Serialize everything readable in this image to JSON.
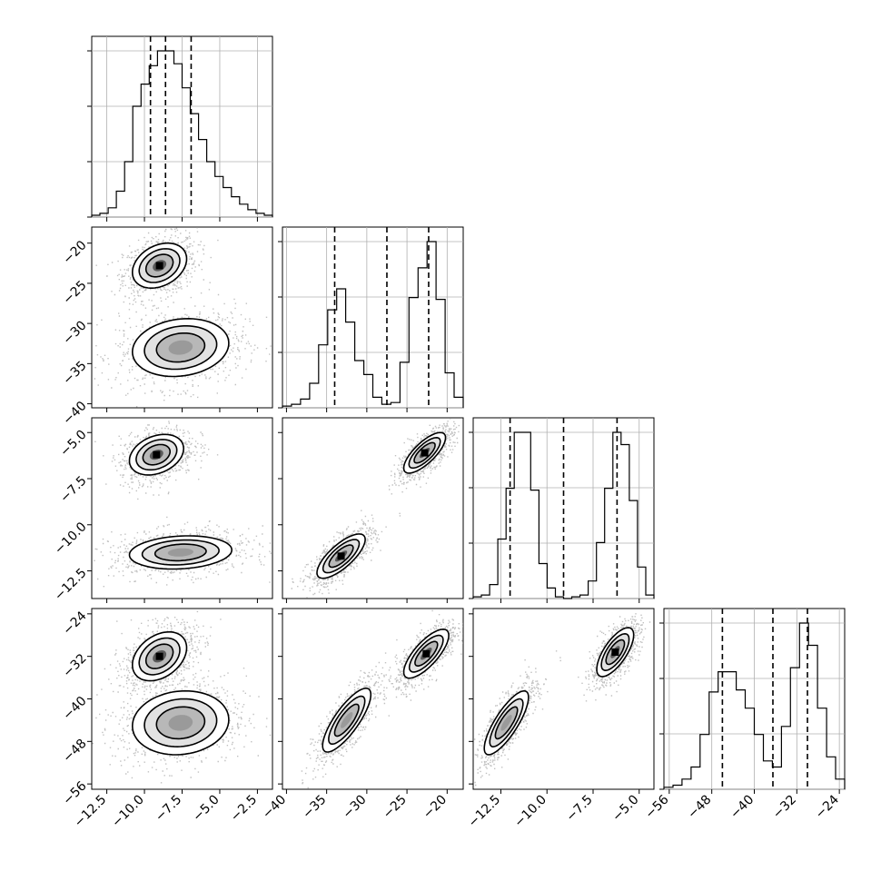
{
  "chart_data": {
    "type": "corner",
    "params": [
      {
        "range": [
          -13.5,
          -1.5
        ],
        "ticks": [
          -12.5,
          -10.0,
          -7.5,
          -5.0,
          -2.5
        ],
        "tick_labels": [
          "−12.5",
          "−10.0",
          "−7.5",
          "−5.0",
          "−2.5"
        ],
        "quantiles": [
          -9.6,
          -8.6,
          -6.9
        ]
      },
      {
        "range": [
          -40.5,
          -18.0
        ],
        "ticks": [
          -40,
          -35,
          -30,
          -25,
          -20
        ],
        "tick_labels": [
          "−40",
          "−35",
          "−30",
          "−25",
          "−20"
        ],
        "quantiles": [
          -34.0,
          -27.5,
          -22.3
        ]
      },
      {
        "range": [
          -14.0,
          -4.2
        ],
        "ticks": [
          -12.5,
          -10.0,
          -7.5,
          -5.0
        ],
        "tick_labels": [
          "−12.5",
          "−10.0",
          "−7.5",
          "−5.0"
        ],
        "quantiles": [
          -12.0,
          -9.1,
          -6.2
        ]
      },
      {
        "range": [
          -57.0,
          -23.0
        ],
        "ticks": [
          -56,
          -48,
          -40,
          -32,
          -24
        ],
        "tick_labels": [
          "−56",
          "−48",
          "−40",
          "−32",
          "−24"
        ],
        "quantiles": [
          -46.0,
          -36.5,
          -30.0
        ]
      }
    ],
    "histograms": [
      [
        1,
        2,
        5,
        14,
        30,
        60,
        72,
        82,
        90,
        90,
        83,
        70,
        56,
        42,
        30,
        22,
        16,
        11,
        7,
        4,
        2,
        1
      ],
      [
        1,
        2,
        5,
        14,
        36,
        56,
        68,
        49,
        27,
        19,
        6,
        2,
        3,
        26,
        63,
        80,
        95,
        62,
        20,
        6
      ],
      [
        1,
        2,
        8,
        34,
        63,
        95,
        95,
        62,
        20,
        6,
        1,
        0,
        1,
        2,
        10,
        32,
        63,
        95,
        88,
        56,
        18,
        2
      ],
      [
        1,
        2,
        5,
        11,
        27,
        48,
        58,
        58,
        49,
        40,
        27,
        14,
        11,
        31,
        60,
        82,
        71,
        40,
        16,
        5
      ]
    ],
    "pairs": [
      {
        "row": 1,
        "col": 0,
        "modes": [
          {
            "mu": [
              -9.0,
              -22.8
            ],
            "sd": [
              0.9,
              1.4
            ],
            "rho": 0.3,
            "peak": true
          },
          {
            "mu": [
              -7.6,
              -33.0
            ],
            "sd": [
              1.6,
              1.8
            ],
            "rho": 0.15,
            "peak": false
          }
        ]
      },
      {
        "row": 2,
        "col": 0,
        "modes": [
          {
            "mu": [
              -9.2,
              -6.2
            ],
            "sd": [
              0.9,
              0.55
            ],
            "rho": 0.3,
            "peak": true
          },
          {
            "mu": [
              -7.6,
              -11.5
            ],
            "sd": [
              1.7,
              0.45
            ],
            "rho": 0.15,
            "peak": false
          }
        ]
      },
      {
        "row": 2,
        "col": 1,
        "modes": [
          {
            "mu": [
              -22.8,
              -6.1
            ],
            "sd": [
              1.3,
              0.55
            ],
            "rho": 0.75,
            "peak": true
          },
          {
            "mu": [
              -33.2,
              -11.7
            ],
            "sd": [
              1.5,
              0.6
            ],
            "rho": 0.75,
            "peak": true
          }
        ]
      },
      {
        "row": 3,
        "col": 0,
        "modes": [
          {
            "mu": [
              -9.0,
              -32.0
            ],
            "sd": [
              0.9,
              2.3
            ],
            "rho": 0.35,
            "peak": true
          },
          {
            "mu": [
              -7.6,
              -44.5
            ],
            "sd": [
              1.6,
              3.0
            ],
            "rho": 0.1,
            "peak": false
          }
        ]
      },
      {
        "row": 3,
        "col": 1,
        "modes": [
          {
            "mu": [
              -22.6,
              -31.5
            ],
            "sd": [
              1.4,
              2.3
            ],
            "rho": 0.75,
            "peak": true
          },
          {
            "mu": [
              -32.5,
              -44.0
            ],
            "sd": [
              1.5,
              3.0
            ],
            "rho": 0.8,
            "peak": false
          }
        ]
      },
      {
        "row": 3,
        "col": 2,
        "modes": [
          {
            "mu": [
              -6.3,
              -31.2
            ],
            "sd": [
              0.5,
              2.3
            ],
            "rho": 0.7,
            "peak": true
          },
          {
            "mu": [
              -12.2,
              -44.5
            ],
            "sd": [
              0.6,
              3.0
            ],
            "rho": 0.8,
            "peak": false
          }
        ]
      }
    ],
    "contour_levels": [
      0.39,
      0.86,
      1.0
    ],
    "colors": {
      "contour": "#000000",
      "points": "#8c8c8c",
      "density": "#5a5a5a"
    }
  }
}
